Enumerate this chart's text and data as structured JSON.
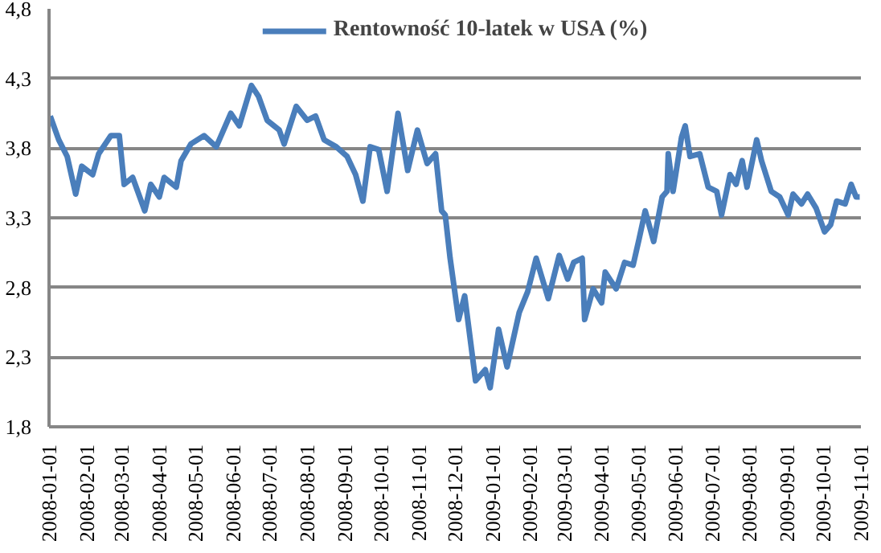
{
  "chart_data": {
    "type": "line",
    "legend": "top",
    "grid": "y",
    "marker": "none",
    "line_style": "solid",
    "xlim": [
      "2008-01-01",
      "2009-11-01"
    ],
    "xticks": [
      "2008-01-01",
      "2008-02-01",
      "2008-03-01",
      "2008-04-01",
      "2008-05-01",
      "2008-06-01",
      "2008-07-01",
      "2008-08-01",
      "2008-09-01",
      "2008-10-01",
      "2008-11-01",
      "2008-12-01",
      "2009-01-01",
      "2009-02-01",
      "2009-03-01",
      "2009-04-01",
      "2009-05-01",
      "2009-06-01",
      "2009-07-01",
      "2009-08-01",
      "2009-09-01",
      "2009-10-01",
      "2009-11-01"
    ],
    "ylim": [
      1.8,
      4.8
    ],
    "yticks": [
      {
        "value": 1.8,
        "label": "1,8"
      },
      {
        "value": 2.3,
        "label": "2,3"
      },
      {
        "value": 2.8,
        "label": "2,8"
      },
      {
        "value": 3.3,
        "label": "3,3"
      },
      {
        "value": 3.8,
        "label": "3,8"
      },
      {
        "value": 4.3,
        "label": "4,3"
      },
      {
        "value": 4.8,
        "label": "4,8"
      }
    ],
    "x": [
      "2008-01-02",
      "2008-01-09",
      "2008-01-16",
      "2008-01-23",
      "2008-01-28",
      "2008-02-06",
      "2008-02-11",
      "2008-02-21",
      "2008-02-28",
      "2008-03-03",
      "2008-03-10",
      "2008-03-20",
      "2008-03-25",
      "2008-04-01",
      "2008-04-05",
      "2008-04-15",
      "2008-04-19",
      "2008-04-27",
      "2008-05-08",
      "2008-05-18",
      "2008-05-30",
      "2008-06-06",
      "2008-06-16",
      "2008-06-22",
      "2008-06-29",
      "2008-07-09",
      "2008-07-13",
      "2008-07-23",
      "2008-08-01",
      "2008-08-08",
      "2008-08-15",
      "2008-08-25",
      "2008-09-03",
      "2008-09-10",
      "2008-09-16",
      "2008-09-22",
      "2008-09-29",
      "2008-10-06",
      "2008-10-15",
      "2008-10-23",
      "2008-10-31",
      "2008-11-08",
      "2008-11-15",
      "2008-11-20",
      "2008-11-23",
      "2008-11-27",
      "2008-12-04",
      "2008-12-09",
      "2008-12-18",
      "2008-12-26",
      "2008-12-30",
      "2009-01-06",
      "2009-01-13",
      "2009-01-23",
      "2009-01-30",
      "2009-02-06",
      "2009-02-16",
      "2009-02-25",
      "2009-03-04",
      "2009-03-09",
      "2009-03-16",
      "2009-03-18",
      "2009-03-25",
      "2009-04-01",
      "2009-04-04",
      "2009-04-13",
      "2009-04-20",
      "2009-04-27",
      "2009-05-02",
      "2009-05-07",
      "2009-05-14",
      "2009-05-21",
      "2009-05-25",
      "2009-05-26",
      "2009-05-30",
      "2009-06-06",
      "2009-06-09",
      "2009-06-13",
      "2009-06-21",
      "2009-06-28",
      "2009-07-05",
      "2009-07-09",
      "2009-07-16",
      "2009-07-21",
      "2009-07-26",
      "2009-07-30",
      "2009-08-07",
      "2009-08-11",
      "2009-08-19",
      "2009-08-26",
      "2009-09-02",
      "2009-09-06",
      "2009-09-13",
      "2009-09-18",
      "2009-09-25",
      "2009-10-02",
      "2009-10-07",
      "2009-10-12",
      "2009-10-19",
      "2009-10-24",
      "2009-10-28",
      "2009-10-31"
    ],
    "series": [
      {
        "name": "Rentowność 10-latek w USA (%)",
        "color": "#4a7ebb",
        "values": [
          4.03,
          3.86,
          3.74,
          3.47,
          3.67,
          3.61,
          3.76,
          3.89,
          3.89,
          3.54,
          3.59,
          3.35,
          3.54,
          3.45,
          3.59,
          3.52,
          3.71,
          3.83,
          3.89,
          3.81,
          4.05,
          3.96,
          4.25,
          4.17,
          4.0,
          3.93,
          3.83,
          4.1,
          4.0,
          4.03,
          3.86,
          3.81,
          3.74,
          3.61,
          3.42,
          3.81,
          3.79,
          3.49,
          4.05,
          3.64,
          3.93,
          3.69,
          3.76,
          3.35,
          3.32,
          3.01,
          2.57,
          2.74,
          2.13,
          2.21,
          2.08,
          2.5,
          2.23,
          2.62,
          2.77,
          3.01,
          2.72,
          3.03,
          2.86,
          2.98,
          3.01,
          2.57,
          2.79,
          2.69,
          2.91,
          2.79,
          2.98,
          2.96,
          3.15,
          3.35,
          3.13,
          3.45,
          3.49,
          3.76,
          3.49,
          3.88,
          3.96,
          3.74,
          3.76,
          3.52,
          3.49,
          3.32,
          3.61,
          3.54,
          3.71,
          3.52,
          3.86,
          3.71,
          3.49,
          3.45,
          3.32,
          3.47,
          3.4,
          3.47,
          3.37,
          3.2,
          3.25,
          3.42,
          3.4,
          3.54,
          3.45,
          3.45
        ]
      }
    ]
  }
}
